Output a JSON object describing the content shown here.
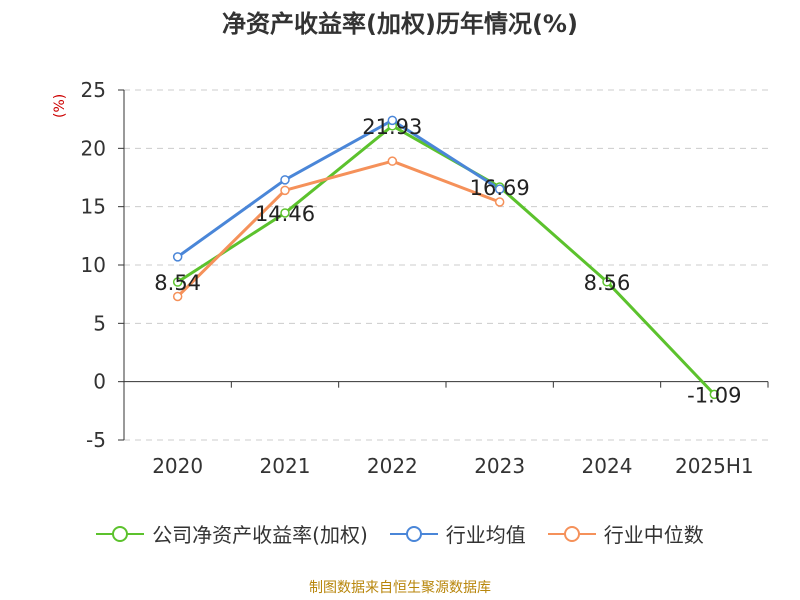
{
  "chart_data": {
    "type": "line",
    "title": "净资产收益率(加权)历年情况(%)",
    "unit_label": "(%)",
    "categories": [
      "2020",
      "2021",
      "2022",
      "2023",
      "2024",
      "2025H1"
    ],
    "ylim": [
      -5,
      25
    ],
    "yticks": [
      "25",
      "20",
      "15",
      "10",
      "5",
      "0",
      "-5"
    ],
    "ytick_values": [
      25,
      20,
      15,
      10,
      5,
      0,
      -5
    ],
    "grid": true,
    "legend_position": "bottom",
    "series": [
      {
        "name": "公司净资产收益率(加权)",
        "color": "#5cc22d",
        "values": [
          8.54,
          14.46,
          21.93,
          16.69,
          8.56,
          -1.09
        ],
        "labels": [
          "8.54",
          "14.46",
          "21.93",
          "16.69",
          "8.56",
          "-1.09"
        ]
      },
      {
        "name": "行业均值",
        "color": "#4a86d8",
        "values": [
          10.7,
          17.3,
          22.4,
          16.5,
          null,
          null
        ]
      },
      {
        "name": "行业中位数",
        "color": "#f5915a",
        "values": [
          7.3,
          16.4,
          18.9,
          15.4,
          null,
          null
        ]
      }
    ]
  },
  "footer": "制图数据来自恒生聚源数据库"
}
